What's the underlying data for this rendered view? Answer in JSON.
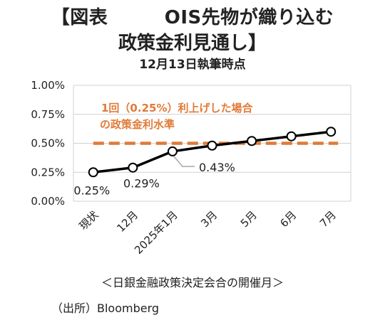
{
  "title": {
    "line1": "【図表　　　OIS先物が織り込む",
    "line2": "政策金利見通し】",
    "line3": "12月13日執筆時点"
  },
  "chart_data": {
    "type": "line",
    "categories": [
      "現状",
      "12月",
      "2025年1月",
      "3月",
      "5月",
      "6月",
      "7月"
    ],
    "series": [
      {
        "values": [
          0.25,
          0.29,
          0.43,
          0.48,
          0.52,
          0.56,
          0.6
        ]
      }
    ],
    "reference_line": {
      "value": 0.5,
      "label_line1": "1回（0.25%）利上げした場合",
      "label_line2": "の政策金利水準"
    },
    "data_labels": [
      {
        "index": 0,
        "text": "0.25%"
      },
      {
        "index": 1,
        "text": "0.29%"
      },
      {
        "index": 2,
        "text": "0.43%"
      }
    ],
    "y_ticks": [
      "0.00%",
      "0.25%",
      "0.50%",
      "0.75%",
      "1.00%"
    ],
    "ylim": [
      0,
      1.0
    ],
    "grid": true,
    "xlabel": "＜日銀金融政策決定会合の開催月＞",
    "colors": {
      "series": "#000000",
      "reference": "#E07B39",
      "grid": "#D0D0D0",
      "leader": "#A6A6A6"
    }
  },
  "source": "（出所）Bloomberg"
}
